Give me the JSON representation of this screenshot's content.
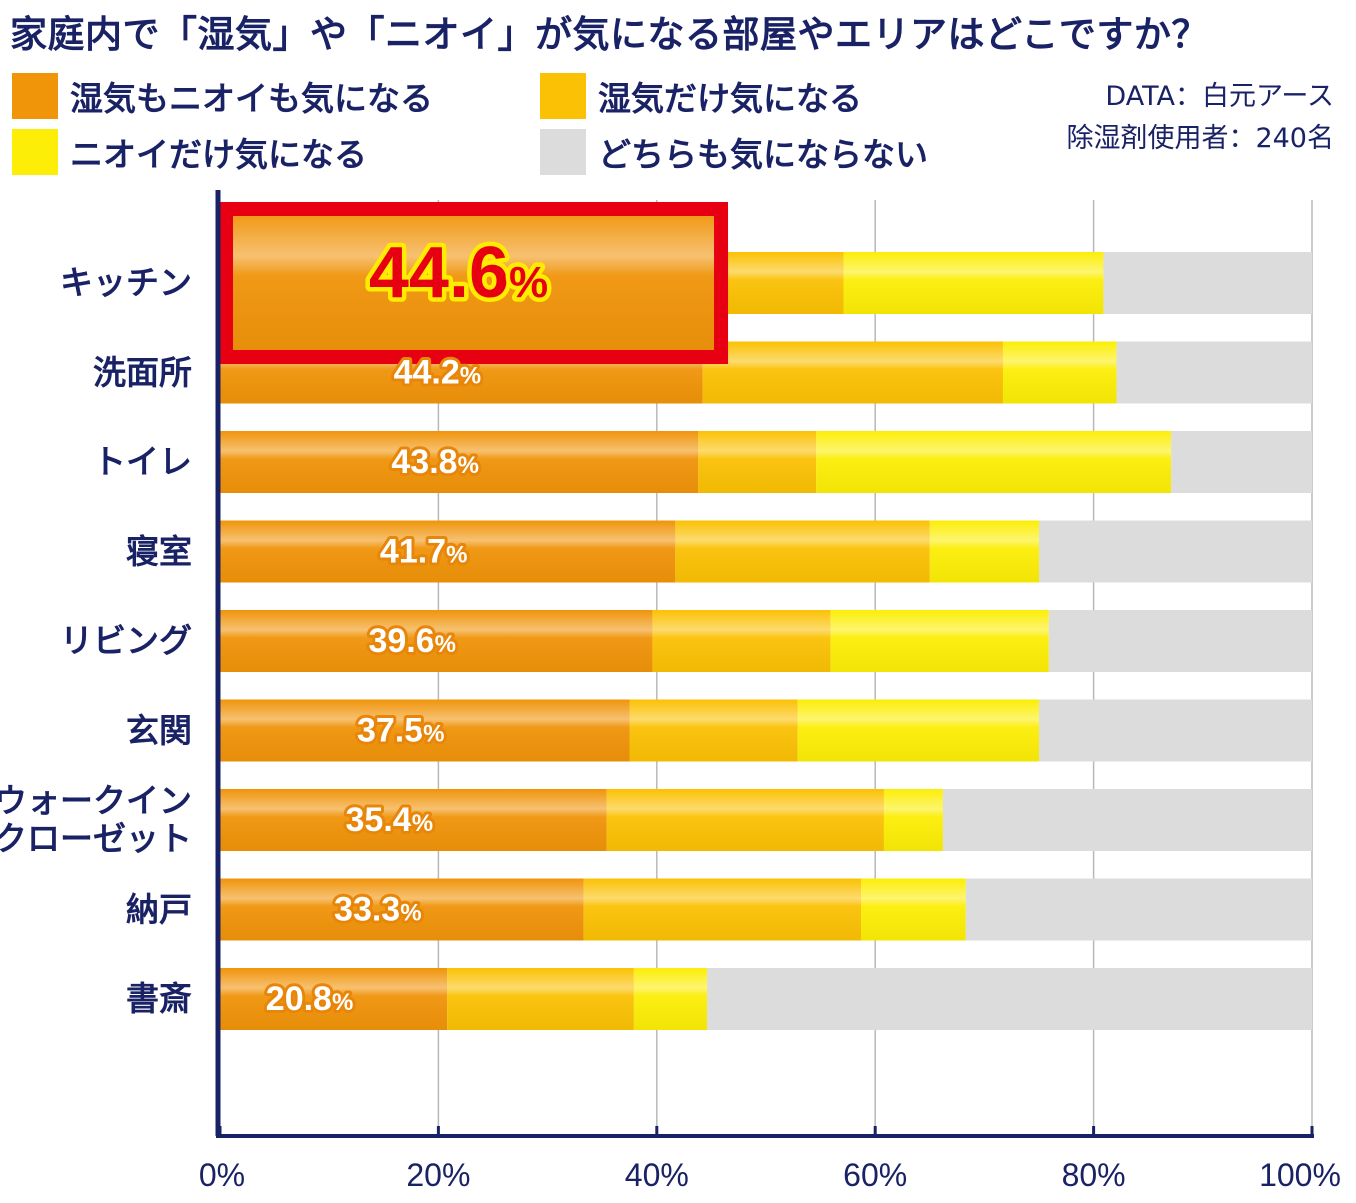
{
  "chart_data": {
    "type": "bar",
    "orientation": "horizontal",
    "stacked": true,
    "title": "家庭内で「湿気」や「ニオイ」が気になる部屋やエリアはどこですか？",
    "source": "DATA：白元アース",
    "sample": "除湿剤使用者：240名",
    "xlim": [
      0,
      100
    ],
    "xticks": [
      "0%",
      "20%",
      "40%",
      "60%",
      "80%",
      "100%"
    ],
    "xtick_values": [
      0,
      20,
      40,
      60,
      80,
      100
    ],
    "categories": [
      "キッチン",
      "洗面所",
      "トイレ",
      "寝室",
      "リビング",
      "玄関",
      "ウォークイン\nクローゼット",
      "納戸",
      "書斎"
    ],
    "category_lines": [
      [
        "キッチン"
      ],
      [
        "洗面所"
      ],
      [
        "トイレ"
      ],
      [
        "寝室"
      ],
      [
        "リビング"
      ],
      [
        "玄関"
      ],
      [
        "ウォークイン",
        "クローゼット"
      ],
      [
        "納戸"
      ],
      [
        "書斎"
      ]
    ],
    "series": [
      {
        "name": "湿気もニオイも気になる",
        "color": "#f0940a",
        "values": [
          44.6,
          44.2,
          43.8,
          41.7,
          39.6,
          37.5,
          35.4,
          33.3,
          20.8
        ]
      },
      {
        "name": "湿気だけ気になる",
        "color": "#fbc104",
        "values": [
          12.5,
          27.5,
          10.8,
          23.3,
          16.3,
          15.4,
          25.4,
          25.4,
          17.1
        ]
      },
      {
        "name": "ニオイだけ気になる",
        "color": "#fcee06",
        "values": [
          23.8,
          10.4,
          32.5,
          10.0,
          20.0,
          22.1,
          5.4,
          9.6,
          6.7
        ]
      },
      {
        "name": "どちらも気にならない",
        "color": "#dcdcdc",
        "values": [
          19.1,
          17.9,
          12.9,
          25.0,
          24.1,
          25.0,
          33.8,
          31.7,
          55.4
        ]
      }
    ],
    "data_labels": [
      "44.6",
      "44.2",
      "43.8",
      "41.7",
      "39.6",
      "37.5",
      "35.4",
      "33.3",
      "20.8"
    ],
    "percent_sign": "%",
    "highlight_index": 0,
    "highlight_color": "#e60012"
  }
}
